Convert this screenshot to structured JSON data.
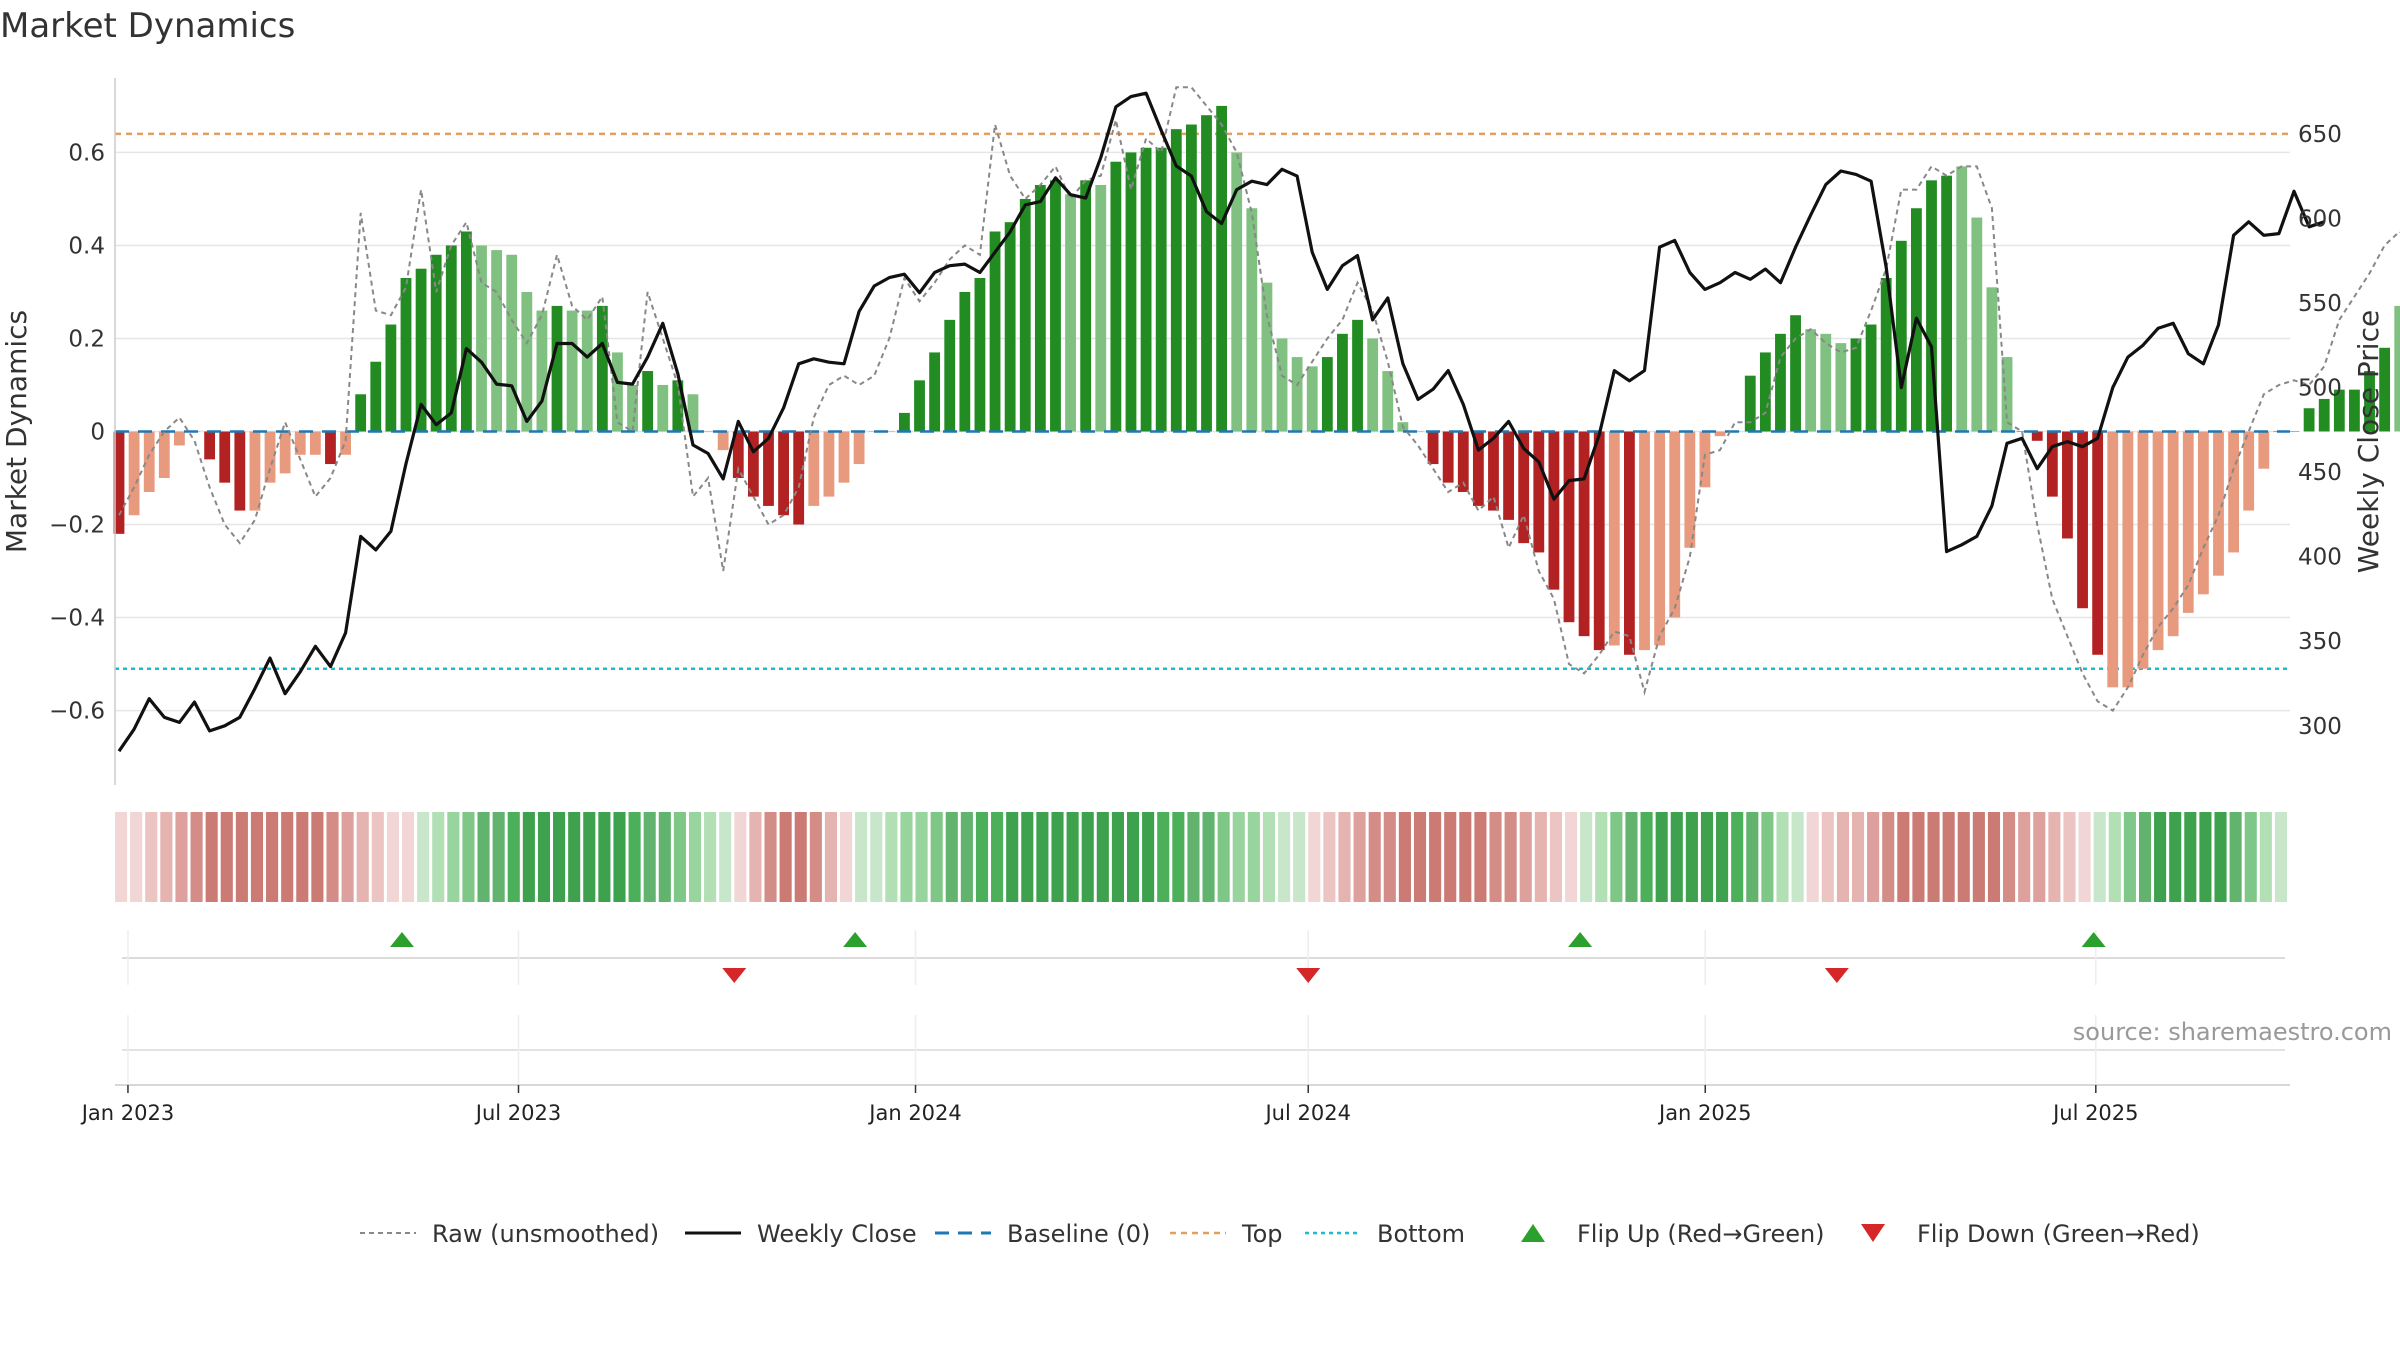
{
  "title": "Market Dynamics",
  "source": "source: sharemaestro.com",
  "chart_data": {
    "type": "bar",
    "title": "Market Dynamics",
    "ylabel": "Market Dynamics",
    "y2label": "Weekly Close Price",
    "ylim": [
      -0.76,
      0.76
    ],
    "y2lim": [
      265,
      683
    ],
    "yticks": [
      -0.6,
      -0.4,
      -0.2,
      0,
      0.2,
      0.4,
      0.6
    ],
    "ytick_labels": [
      "−0.6",
      "−0.4",
      "−0.2",
      "0",
      "0.2",
      "0.4",
      "0.6"
    ],
    "y2ticks": [
      300,
      350,
      400,
      450,
      500,
      550,
      600,
      650
    ],
    "y2tick_labels": [
      "300",
      "350",
      "400",
      "450",
      "500",
      "550",
      "600",
      "650"
    ],
    "x_start": "2022-12-26",
    "x_end": "2025-09-29",
    "xticks": [
      {
        "date": "2023-01-01",
        "label": "Jan 2023"
      },
      {
        "date": "2023-07-01",
        "label": "Jul 2023"
      },
      {
        "date": "2024-01-01",
        "label": "Jan 2024"
      },
      {
        "date": "2024-07-01",
        "label": "Jul 2024"
      },
      {
        "date": "2025-01-01",
        "label": "Jan 2025"
      },
      {
        "date": "2025-07-01",
        "label": "Jul 2025"
      }
    ],
    "top_threshold": 0.64,
    "bottom_threshold": -0.51,
    "baseline": 0,
    "bar_values": [
      -0.22,
      -0.18,
      -0.13,
      -0.1,
      -0.03,
      0.0,
      -0.06,
      -0.11,
      -0.17,
      -0.17,
      -0.11,
      -0.09,
      -0.05,
      -0.05,
      -0.07,
      -0.05,
      0.08,
      0.15,
      0.23,
      0.33,
      0.35,
      0.38,
      0.4,
      0.43,
      0.4,
      0.39,
      0.38,
      0.3,
      0.26,
      0.27,
      0.26,
      0.26,
      0.27,
      0.17,
      0.1,
      0.13,
      0.1,
      0.11,
      0.08,
      0.0,
      -0.04,
      -0.1,
      -0.14,
      -0.16,
      -0.18,
      -0.2,
      -0.16,
      -0.14,
      -0.11,
      -0.07,
      0.0,
      0.0,
      0.04,
      0.11,
      0.17,
      0.24,
      0.3,
      0.33,
      0.43,
      0.45,
      0.5,
      0.53,
      0.54,
      0.51,
      0.54,
      0.53,
      0.58,
      0.6,
      0.61,
      0.61,
      0.65,
      0.66,
      0.68,
      0.7,
      0.6,
      0.48,
      0.32,
      0.2,
      0.16,
      0.14,
      0.16,
      0.21,
      0.24,
      0.2,
      0.13,
      0.02,
      0.0,
      -0.07,
      -0.11,
      -0.13,
      -0.16,
      -0.17,
      -0.19,
      -0.24,
      -0.26,
      -0.34,
      -0.41,
      -0.44,
      -0.47,
      -0.46,
      -0.48,
      -0.47,
      -0.46,
      -0.4,
      -0.25,
      -0.12,
      -0.01,
      0.0,
      0.12,
      0.17,
      0.21,
      0.25,
      0.22,
      0.21,
      0.19,
      0.2,
      0.23,
      0.33,
      0.41,
      0.48,
      0.54,
      0.55,
      0.57,
      0.46,
      0.31,
      0.16,
      0.0,
      -0.02,
      -0.14,
      -0.23,
      -0.38,
      -0.48,
      -0.55,
      -0.55,
      -0.51,
      -0.47,
      -0.44,
      -0.39,
      -0.35,
      -0.31,
      -0.26,
      -0.17,
      -0.08,
      0.0,
      0.0,
      0.05,
      0.07,
      0.09,
      0.09,
      0.13,
      0.18,
      0.27,
      0.34,
      0.4,
      0.41,
      0.4
    ],
    "bar_strength": [
      "dark",
      "light",
      "light",
      "light",
      "light",
      "light",
      "dark",
      "dark",
      "dark",
      "light",
      "light",
      "light",
      "light",
      "light",
      "dark",
      "light",
      "dark",
      "dark",
      "dark",
      "dark",
      "dark",
      "dark",
      "dark",
      "dark",
      "light",
      "light",
      "light",
      "light",
      "light",
      "dark",
      "light",
      "light",
      "dark",
      "light",
      "light",
      "dark",
      "light",
      "dark",
      "light",
      "light",
      "light",
      "dark",
      "dark",
      "dark",
      "dark",
      "dark",
      "light",
      "light",
      "light",
      "light",
      "light",
      "light",
      "dark",
      "dark",
      "dark",
      "dark",
      "dark",
      "dark",
      "dark",
      "dark",
      "dark",
      "dark",
      "dark",
      "light",
      "dark",
      "light",
      "dark",
      "dark",
      "dark",
      "dark",
      "dark",
      "dark",
      "dark",
      "dark",
      "light",
      "light",
      "light",
      "light",
      "light",
      "light",
      "dark",
      "dark",
      "dark",
      "light",
      "light",
      "light",
      "light",
      "dark",
      "dark",
      "dark",
      "dark",
      "dark",
      "dark",
      "dark",
      "dark",
      "dark",
      "dark",
      "dark",
      "dark",
      "light",
      "dark",
      "light",
      "light",
      "light",
      "light",
      "light",
      "light",
      "light",
      "dark",
      "dark",
      "dark",
      "dark",
      "light",
      "light",
      "light",
      "dark",
      "dark",
      "dark",
      "dark",
      "dark",
      "dark",
      "dark",
      "light",
      "light",
      "light",
      "light",
      "dark",
      "dark",
      "dark",
      "dark",
      "dark",
      "dark",
      "light",
      "light",
      "light",
      "light",
      "light",
      "light",
      "light",
      "light",
      "light",
      "light",
      "light",
      "dark",
      "dark",
      "dark",
      "dark",
      "dark",
      "dark",
      "dark",
      "dark",
      "light",
      "light"
    ],
    "raw_values": [
      -0.18,
      -0.12,
      -0.05,
      0.0,
      0.03,
      -0.02,
      -0.12,
      -0.2,
      -0.24,
      -0.19,
      -0.08,
      0.02,
      -0.06,
      -0.14,
      -0.1,
      -0.02,
      0.47,
      0.26,
      0.25,
      0.31,
      0.52,
      0.3,
      0.4,
      0.45,
      0.32,
      0.3,
      0.24,
      0.19,
      0.25,
      0.38,
      0.27,
      0.24,
      0.29,
      0.02,
      0.0,
      0.3,
      0.2,
      0.1,
      -0.14,
      -0.1,
      -0.3,
      -0.08,
      -0.14,
      -0.2,
      -0.18,
      -0.12,
      0.03,
      0.1,
      0.12,
      0.1,
      0.12,
      0.2,
      0.33,
      0.28,
      0.32,
      0.37,
      0.4,
      0.38,
      0.66,
      0.55,
      0.5,
      0.53,
      0.57,
      0.5,
      0.54,
      0.55,
      0.67,
      0.52,
      0.63,
      0.6,
      0.74,
      0.74,
      0.7,
      0.66,
      0.6,
      0.47,
      0.25,
      0.12,
      0.1,
      0.15,
      0.2,
      0.24,
      0.32,
      0.26,
      0.15,
      0.01,
      -0.03,
      -0.08,
      -0.13,
      -0.11,
      -0.17,
      -0.14,
      -0.25,
      -0.18,
      -0.3,
      -0.36,
      -0.5,
      -0.52,
      -0.48,
      -0.43,
      -0.44,
      -0.56,
      -0.44,
      -0.38,
      -0.27,
      -0.05,
      -0.04,
      0.02,
      0.02,
      0.04,
      0.16,
      0.2,
      0.22,
      0.19,
      0.17,
      0.18,
      0.26,
      0.35,
      0.52,
      0.52,
      0.57,
      0.55,
      0.57,
      0.57,
      0.48,
      0.02,
      0.0,
      -0.2,
      -0.36,
      -0.44,
      -0.52,
      -0.58,
      -0.6,
      -0.55,
      -0.48,
      -0.42,
      -0.38,
      -0.33,
      -0.25,
      -0.18,
      -0.08,
      0.0,
      0.08,
      0.1,
      0.11,
      0.1,
      0.14,
      0.24,
      0.29,
      0.34,
      0.4,
      0.43,
      0.4,
      0.42
    ],
    "close_values": [
      285,
      298,
      316,
      305,
      302,
      314,
      297,
      300,
      305,
      322,
      340,
      319,
      332,
      347,
      335,
      355,
      412,
      404,
      415,
      455,
      490,
      478,
      485,
      523,
      515,
      502,
      501,
      480,
      492,
      526,
      526,
      518,
      526,
      503,
      502,
      518,
      538,
      508,
      466,
      461,
      446,
      480,
      462,
      470,
      488,
      514,
      517,
      515,
      514,
      545,
      560,
      565,
      567,
      556,
      568,
      572,
      573,
      568,
      580,
      592,
      608,
      610,
      624,
      614,
      612,
      636,
      666,
      672,
      674,
      652,
      631,
      625,
      604,
      597,
      617,
      622,
      620,
      629,
      625,
      580,
      558,
      572,
      578,
      540,
      553,
      514,
      493,
      499,
      510,
      490,
      463,
      470,
      480,
      464,
      456,
      434,
      445,
      446,
      472,
      510,
      504,
      510,
      583,
      587,
      568,
      558,
      562,
      568,
      564,
      570,
      562,
      583,
      602,
      620,
      628,
      626,
      622,
      571,
      500,
      541,
      524,
      403,
      407,
      412,
      430,
      467,
      470,
      452,
      465,
      468,
      465,
      470,
      500,
      518,
      525,
      535,
      538,
      520,
      514,
      537,
      590,
      598,
      590,
      591,
      616,
      595,
      598
    ]
  },
  "heat_strip": {
    "segments": [
      {
        "color": "red",
        "from": "2022-12-26",
        "to": "2023-05-15"
      },
      {
        "color": "green",
        "from": "2023-05-15",
        "to": "2023-10-09"
      },
      {
        "color": "red",
        "from": "2023-10-09",
        "to": "2023-12-04"
      },
      {
        "color": "green",
        "from": "2023-12-04",
        "to": "2024-07-01"
      },
      {
        "color": "red",
        "from": "2024-07-01",
        "to": "2024-11-04"
      },
      {
        "color": "green",
        "from": "2024-11-04",
        "to": "2025-02-17"
      },
      {
        "color": "red",
        "from": "2025-02-17",
        "to": "2025-06-30"
      },
      {
        "color": "green",
        "from": "2025-06-30",
        "to": "2025-09-29"
      }
    ]
  },
  "flips": [
    {
      "type": "up",
      "date": "2023-05-08"
    },
    {
      "type": "down",
      "date": "2023-10-09"
    },
    {
      "type": "up",
      "date": "2023-12-04"
    },
    {
      "type": "down",
      "date": "2024-07-01"
    },
    {
      "type": "up",
      "date": "2024-11-04"
    },
    {
      "type": "down",
      "date": "2025-03-03"
    },
    {
      "type": "up",
      "date": "2025-06-30"
    }
  ],
  "colors": {
    "bar_pos_dark": "#228b22",
    "bar_pos_light": "#80c080",
    "bar_neg_dark": "#b22222",
    "bar_neg_light": "#e89a7e",
    "raw_line": "#888888",
    "close_line": "#111111",
    "baseline": "#1f77b4",
    "top": "#e0a060",
    "bottom": "#17becf",
    "flip_up": "#2ca02c",
    "flip_down": "#d62728"
  },
  "legend": {
    "position": "bottom",
    "items": [
      {
        "label": "Raw (unsmoothed)",
        "style": "raw"
      },
      {
        "label": "Weekly Close",
        "style": "close"
      },
      {
        "label": "Baseline (0)",
        "style": "baseline"
      },
      {
        "label": "Top",
        "style": "top"
      },
      {
        "label": "Bottom",
        "style": "bottom"
      },
      {
        "label": "Flip Up (Red→Green)",
        "style": "flipup"
      },
      {
        "label": "Flip Down (Green→Red)",
        "style": "flipdown"
      }
    ]
  }
}
